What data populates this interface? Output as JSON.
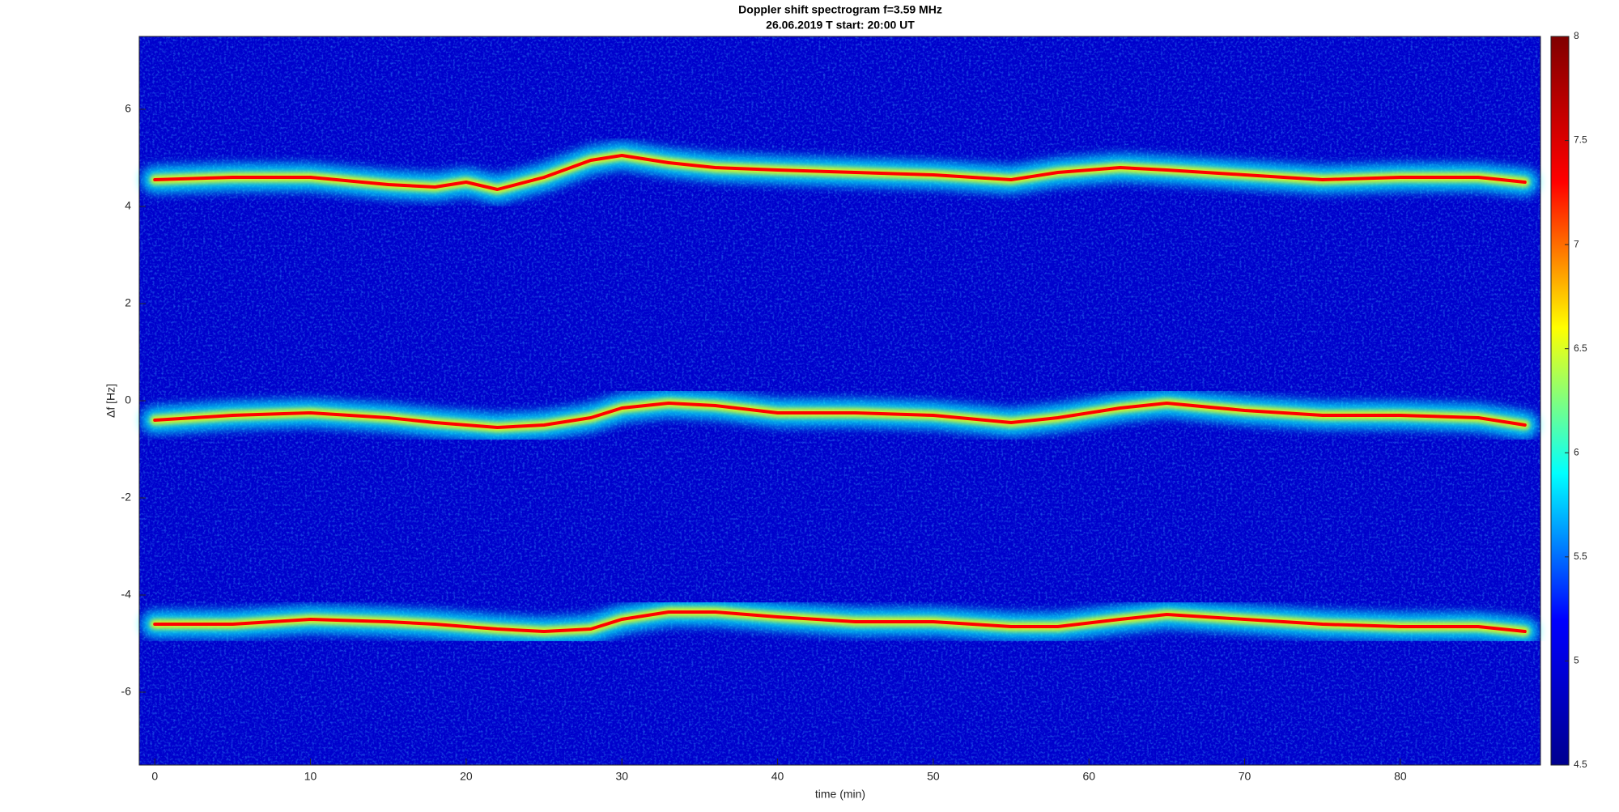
{
  "chart_data": {
    "type": "spectrogram",
    "title": "Doppler shift spectrogram f=3.59 MHz",
    "subtitle": "26.06.2019   T start: 20:00 UT",
    "xlabel": "time (min)",
    "ylabel": "Δf [Hz]",
    "xlim": [
      -1,
      89
    ],
    "xticks": [
      0,
      10,
      20,
      30,
      40,
      50,
      60,
      70,
      80
    ],
    "ylim": [
      -7.5,
      7.5
    ],
    "yticks": [
      -6,
      -4,
      -2,
      0,
      2,
      4,
      6
    ],
    "clim": [
      4.5,
      8
    ],
    "cticks": [
      4.5,
      5,
      5.5,
      6,
      6.5,
      7,
      7.5,
      8
    ],
    "colormap": [
      "#00008f",
      "#0000ff",
      "#00ffff",
      "#ffff00",
      "#ff0000",
      "#800000"
    ],
    "x": [
      0,
      5,
      10,
      15,
      18,
      20,
      22,
      25,
      28,
      30,
      33,
      36,
      40,
      45,
      50,
      55,
      58,
      62,
      65,
      70,
      75,
      80,
      85,
      88
    ],
    "series": [
      {
        "values": [
          4.55,
          4.6,
          4.6,
          4.45,
          4.4,
          4.5,
          4.35,
          4.6,
          4.95,
          5.05,
          4.9,
          4.8,
          4.75,
          4.7,
          4.65,
          4.55,
          4.7,
          4.8,
          4.75,
          4.65,
          4.55,
          4.6,
          4.6,
          4.5
        ]
      },
      {
        "values": [
          -0.4,
          -0.3,
          -0.25,
          -0.35,
          -0.45,
          -0.5,
          -0.55,
          -0.5,
          -0.35,
          -0.15,
          -0.05,
          -0.1,
          -0.25,
          -0.25,
          -0.3,
          -0.45,
          -0.35,
          -0.15,
          -0.05,
          -0.2,
          -0.3,
          -0.3,
          -0.35,
          -0.5
        ]
      },
      {
        "values": [
          -4.6,
          -4.6,
          -4.5,
          -4.55,
          -4.6,
          -4.65,
          -4.7,
          -4.75,
          -4.7,
          -4.5,
          -4.35,
          -4.35,
          -4.45,
          -4.55,
          -4.55,
          -4.65,
          -4.65,
          -4.5,
          -4.4,
          -4.5,
          -4.6,
          -4.65,
          -4.65,
          -4.75
        ]
      }
    ]
  }
}
